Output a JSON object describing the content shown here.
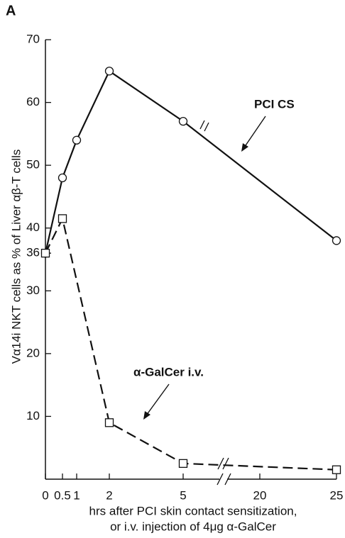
{
  "chart_data": {
    "type": "line",
    "panel": "A",
    "xlabel": [
      "hrs after PCI skin contact sensitization,",
      "or i.v. injection of 4μg α-GalCer"
    ],
    "ylabel": "Vα14i NKT cells as % of Liver αβ-T cells",
    "xlim": [
      0,
      25
    ],
    "xticks": [
      0,
      0.5,
      1,
      2,
      5,
      20,
      25
    ],
    "ylim": [
      0,
      70
    ],
    "yticks": [
      10,
      20,
      30,
      36,
      40,
      50,
      60,
      70
    ],
    "series": [
      {
        "name": "PCI CS",
        "color": "#111111",
        "dash": false,
        "marker": "circle",
        "x": [
          0,
          0.5,
          1,
          2,
          5,
          25
        ],
        "values": [
          36,
          48,
          54,
          65,
          57,
          38
        ]
      },
      {
        "name": "α-GalCer i.v.",
        "color": "#111111",
        "dash": true,
        "marker": "square",
        "x": [
          0,
          0.5,
          2,
          5,
          25
        ],
        "values": [
          36,
          41.5,
          9,
          2.5,
          1.5
        ]
      }
    ]
  }
}
